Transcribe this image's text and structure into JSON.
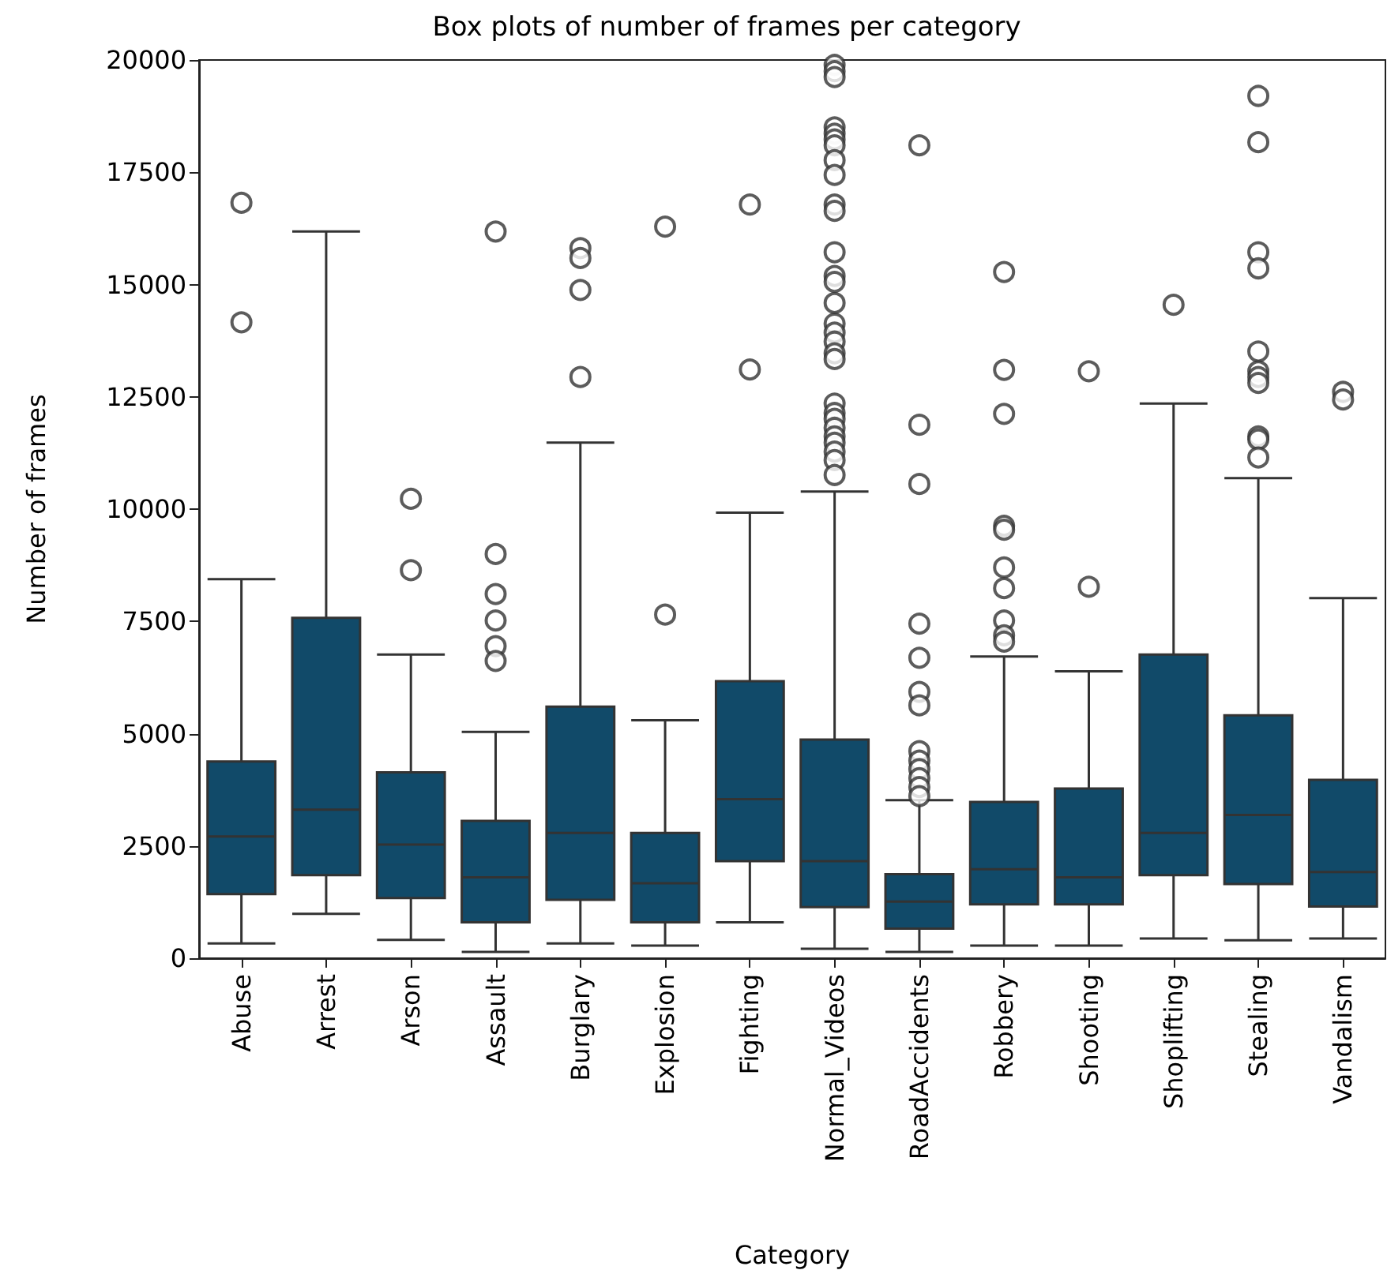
{
  "chart_data": {
    "type": "box",
    "title": "Box plots of number of frames per category",
    "xlabel": "Category",
    "ylabel": "Number of frames",
    "categories": [
      "Abuse",
      "Arrest",
      "Arson",
      "Assault",
      "Burglary",
      "Explosion",
      "Fighting",
      "Normal_Videos",
      "RoadAccidents",
      "Robbery",
      "Shooting",
      "Shoplifting",
      "Stealing",
      "Vandalism"
    ],
    "color": "#114a69",
    "marker": "circle",
    "grid": false,
    "ylim": [
      0,
      20000
    ],
    "yticks": [
      0,
      2500,
      5000,
      7500,
      10000,
      12500,
      15000,
      17500,
      20000
    ],
    "boxes": [
      {
        "low": 330,
        "q1": 1430,
        "median": 2710,
        "q3": 4380,
        "high": 8440,
        "outliers": [
          16820,
          14160
        ]
      },
      {
        "low": 990,
        "q1": 1850,
        "median": 3310,
        "q3": 7580,
        "high": 16180
      },
      {
        "low": 410,
        "q1": 1340,
        "median": 2530,
        "q3": 4140,
        "high": 6760,
        "outliers": [
          10230,
          8640
        ]
      },
      {
        "low": 140,
        "q1": 800,
        "median": 1800,
        "q3": 3060,
        "high": 5040,
        "outliers": [
          16180,
          9000,
          8110,
          7520,
          6950,
          6620
        ]
      },
      {
        "low": 330,
        "q1": 1300,
        "median": 2790,
        "q3": 5600,
        "high": 11480,
        "outliers": [
          15810,
          15590,
          14880,
          12940
        ]
      },
      {
        "low": 280,
        "q1": 800,
        "median": 1670,
        "q3": 2790,
        "high": 5300,
        "outliers": [
          16290,
          7650
        ]
      },
      {
        "low": 800,
        "q1": 2160,
        "median": 3540,
        "q3": 6170,
        "high": 9920,
        "outliers": [
          16780,
          13110
        ]
      },
      {
        "low": 210,
        "q1": 1140,
        "median": 2160,
        "q3": 4870,
        "high": 10390,
        "outliers": [
          19890,
          19750,
          19620,
          18500,
          18360,
          18230,
          18100,
          17770,
          17440,
          16780,
          16640,
          15720,
          15190,
          15060,
          14590,
          14130,
          13930,
          13730,
          13470,
          13340,
          12350,
          12140,
          12010,
          11810,
          11620,
          11480,
          11280,
          11090,
          10760
        ]
      },
      {
        "low": 140,
        "q1": 660,
        "median": 1260,
        "q3": 1870,
        "high": 3520,
        "outliers": [
          18100,
          11880,
          10560,
          7450,
          6690,
          5930,
          5630,
          4610,
          4400,
          4210,
          4010,
          3810,
          3610
        ]
      },
      {
        "low": 280,
        "q1": 1200,
        "median": 1980,
        "q3": 3480,
        "high": 6720,
        "outliers": [
          15280,
          13100,
          12120,
          9630,
          9540,
          8700,
          8240,
          7520,
          7190,
          7050
        ]
      },
      {
        "low": 280,
        "q1": 1200,
        "median": 1800,
        "q3": 3780,
        "high": 6390,
        "outliers": [
          13070,
          8270
        ]
      },
      {
        "low": 440,
        "q1": 1850,
        "median": 2790,
        "q3": 6760,
        "high": 12350,
        "outliers": [
          14550
        ]
      },
      {
        "low": 400,
        "q1": 1650,
        "median": 3190,
        "q3": 5410,
        "high": 10690,
        "outliers": [
          19200,
          18170,
          15720,
          15360,
          13510,
          13070,
          12940,
          12810,
          11620,
          11550,
          11150
        ]
      },
      {
        "low": 440,
        "q1": 1150,
        "median": 1920,
        "q3": 3970,
        "high": 8020,
        "outliers": [
          12610,
          12440
        ]
      }
    ]
  }
}
